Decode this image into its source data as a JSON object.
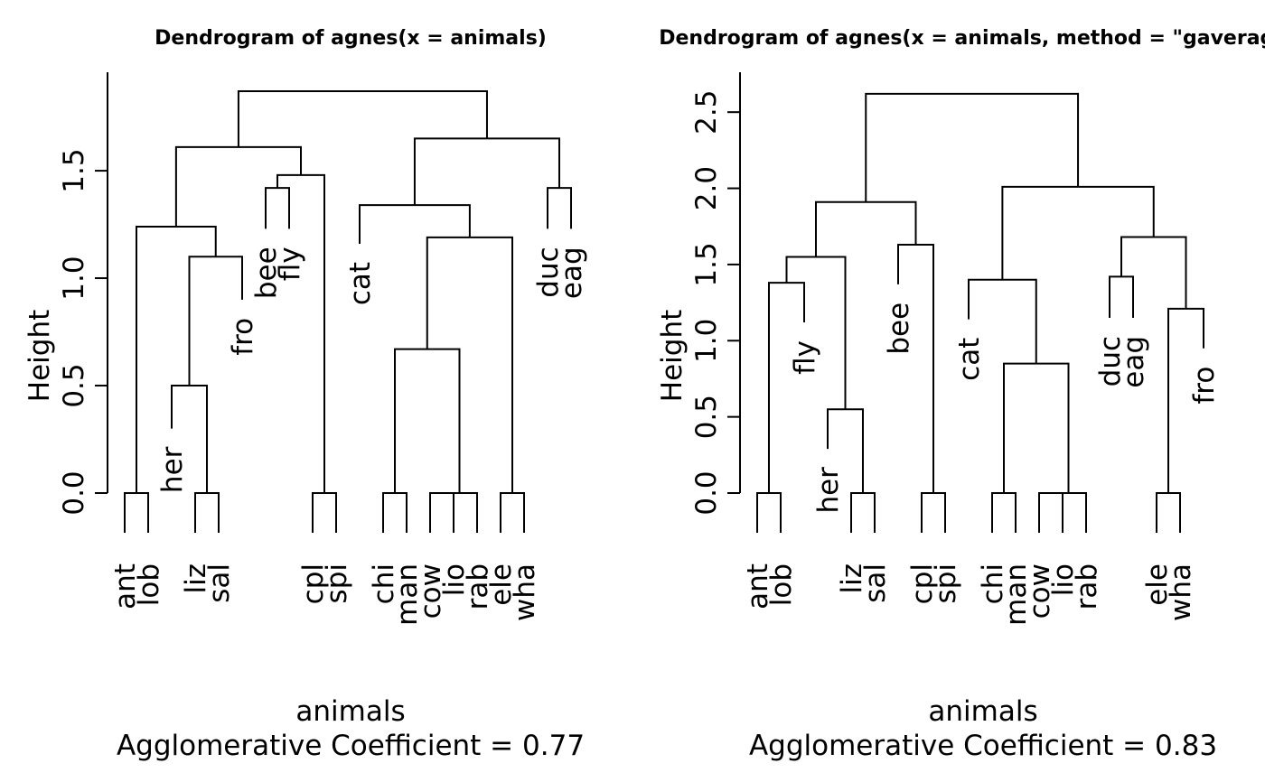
{
  "chart_data": [
    {
      "type": "dendrogram",
      "title": "Dendrogram of  agnes(x = animals)",
      "xlabel": "animals",
      "subtitle": "Agglomerative Coefficient =  0.77",
      "ylabel": "Height",
      "yticks": [
        "0.0",
        "0.5",
        "1.0",
        "1.5"
      ],
      "ylim": [
        0,
        1.95
      ],
      "leaves": [
        "ant",
        "lob",
        "her",
        "liz",
        "sal",
        "fro",
        "bee",
        "fly",
        "cpl",
        "spi",
        "cat",
        "chi",
        "man",
        "cow",
        "lio",
        "rab",
        "ele",
        "wha",
        "duc",
        "eag"
      ],
      "leaf_heights": [
        0,
        0,
        0.3,
        0,
        0,
        0.9,
        1.23,
        1.23,
        0,
        0,
        1.16,
        0,
        0,
        0,
        0,
        0,
        0,
        0,
        1.23,
        1.23
      ],
      "merges": [
        {
          "a": 0,
          "b": 1,
          "height": 0
        },
        {
          "a": 3,
          "b": 4,
          "height": 0
        },
        {
          "a": 8,
          "b": 9,
          "height": 0
        },
        {
          "a": 11,
          "b": 12,
          "height": 0
        },
        {
          "a": 13,
          "b": 14,
          "height": 0
        },
        {
          "a": "n5",
          "b": 15,
          "height": 0
        },
        {
          "a": 16,
          "b": 17,
          "height": 0
        },
        {
          "a": 2,
          "b": "n2",
          "height": 0.5
        },
        {
          "a": "n4",
          "b": "n6",
          "height": 0.67
        },
        {
          "a": 5,
          "b": "n8",
          "height": 1.1
        },
        {
          "a": "n9",
          "b": "n7",
          "height": 1.19
        },
        {
          "a": "n1",
          "b": "n10",
          "height": 1.24
        },
        {
          "a": 10,
          "b": "n11",
          "height": 1.34
        },
        {
          "a": 6,
          "b": 7,
          "height": 1.42
        },
        {
          "a": 18,
          "b": 19,
          "height": 1.42
        },
        {
          "a": "n14",
          "b": "n3",
          "height": 1.48
        },
        {
          "a": "n12",
          "b": "n16",
          "height": 1.61
        },
        {
          "a": "n13",
          "b": "n15",
          "height": 1.65
        },
        {
          "a": "n17",
          "b": "n18",
          "height": 1.87
        }
      ]
    },
    {
      "type": "dendrogram",
      "title": "Dendrogram of  agnes(x = animals, method = \"gaverage\")",
      "xlabel": "animals",
      "subtitle": "Agglomerative Coefficient =  0.83",
      "ylabel": "Height",
      "yticks": [
        "0.0",
        "0.5",
        "1.0",
        "1.5",
        "2.0",
        "2.5"
      ],
      "ylim": [
        0,
        2.75
      ],
      "leaves": [
        "ant",
        "lob",
        "fly",
        "her",
        "liz",
        "sal",
        "bee",
        "cpl",
        "spi",
        "cat",
        "chi",
        "man",
        "cow",
        "lio",
        "rab",
        "duc",
        "eag",
        "ele",
        "wha",
        "fro"
      ],
      "leaf_heights": [
        0,
        0,
        1.12,
        0.29,
        0,
        0,
        1.37,
        0,
        0,
        1.14,
        0,
        0,
        0,
        0,
        0,
        1.15,
        1.15,
        0,
        0,
        0.95
      ],
      "merges": [
        {
          "a": 0,
          "b": 1,
          "height": 0
        },
        {
          "a": 4,
          "b": 5,
          "height": 0
        },
        {
          "a": 7,
          "b": 8,
          "height": 0
        },
        {
          "a": 10,
          "b": 11,
          "height": 0
        },
        {
          "a": 12,
          "b": 13,
          "height": 0
        },
        {
          "a": "n5",
          "b": 14,
          "height": 0
        },
        {
          "a": 17,
          "b": 18,
          "height": 0
        },
        {
          "a": 3,
          "b": "n2",
          "height": 0.55
        },
        {
          "a": "n4",
          "b": "n6",
          "height": 0.85
        },
        {
          "a": "n7",
          "b": 19,
          "height": 1.21
        },
        {
          "a": "n1",
          "b": 2,
          "height": 1.38
        },
        {
          "a": 15,
          "b": 16,
          "height": 1.42
        },
        {
          "a": 9,
          "b": "n9",
          "height": 1.4
        },
        {
          "a": "n11",
          "b": "n8",
          "height": 1.55
        },
        {
          "a": 6,
          "b": "n3",
          "height": 1.63
        },
        {
          "a": "n12",
          "b": "n10",
          "height": 1.68
        },
        {
          "a": "n14",
          "b": "n15",
          "height": 1.91
        },
        {
          "a": "n13",
          "b": "n16",
          "height": 2.01
        },
        {
          "a": "n17",
          "b": "n18",
          "height": 2.62
        }
      ]
    }
  ]
}
